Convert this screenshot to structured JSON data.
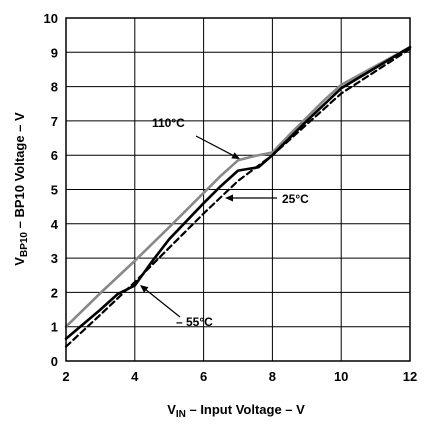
{
  "chart_data": {
    "type": "line",
    "xlabel": {
      "prefix": "V",
      "sub": "IN",
      "rest": " – Input Voltage – V"
    },
    "ylabel": {
      "prefix": "V",
      "sub": "BP10",
      "rest": " – BP10 Voltage – V"
    },
    "xlim": [
      2,
      12
    ],
    "ylim": [
      0,
      10
    ],
    "x_ticks": [
      "2",
      "4",
      "6",
      "8",
      "10",
      "12"
    ],
    "y_ticks": [
      "0",
      "1",
      "2",
      "3",
      "4",
      "5",
      "6",
      "7",
      "8",
      "9",
      "10"
    ],
    "grid": true,
    "series": [
      {
        "name": "110°C",
        "color": "#888888",
        "style": "solid",
        "x": [
          2.0,
          3.0,
          4.0,
          5.0,
          6.0,
          6.5,
          7.0,
          7.5,
          8.0,
          8.5,
          9.0,
          9.5,
          10.0,
          11.0,
          12.0
        ],
        "y": [
          1.0,
          1.98,
          2.92,
          3.9,
          4.9,
          5.4,
          5.85,
          5.98,
          6.08,
          6.6,
          7.1,
          7.6,
          8.05,
          8.6,
          9.15
        ]
      },
      {
        "name": "25°C",
        "color": "#000000",
        "style": "solid",
        "x": [
          2.0,
          3.0,
          3.5,
          4.0,
          4.5,
          5.0,
          6.0,
          6.5,
          7.0,
          7.3,
          7.6,
          8.0,
          8.5,
          9.0,
          10.0,
          11.0,
          12.0
        ],
        "y": [
          0.65,
          1.5,
          1.95,
          2.2,
          2.9,
          3.55,
          4.6,
          5.1,
          5.55,
          5.6,
          5.65,
          6.0,
          6.5,
          7.0,
          7.95,
          8.55,
          9.15
        ]
      },
      {
        "name": "– 55°C",
        "color": "#000000",
        "style": "dashed",
        "x": [
          2.0,
          3.0,
          4.0,
          5.0,
          6.0,
          7.0,
          8.0,
          9.0,
          10.0,
          11.0,
          12.0
        ],
        "y": [
          0.42,
          1.35,
          2.3,
          3.3,
          4.3,
          5.25,
          6.0,
          6.9,
          7.8,
          8.45,
          9.1
        ]
      }
    ],
    "annotations": [
      {
        "text": "110°C",
        "series": 0
      },
      {
        "text": "25°C",
        "series": 1
      },
      {
        "text": "– 55°C",
        "series": 2
      }
    ]
  }
}
